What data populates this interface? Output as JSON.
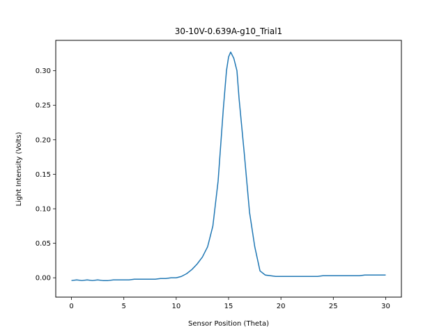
{
  "chart_data": {
    "type": "line",
    "title": "30-10V-0.639A-g10_Trial1",
    "xlabel": "Sensor Position (Theta)",
    "ylabel": "Light Intensity (Volts)",
    "xlim": [
      -1.5,
      31.5
    ],
    "ylim": [
      -0.028,
      0.344
    ],
    "xticks": [
      0,
      5,
      10,
      15,
      20,
      25,
      30
    ],
    "yticks": [
      0.0,
      0.05,
      0.1,
      0.15,
      0.2,
      0.25,
      0.3
    ],
    "ytick_labels": [
      "0.00",
      "0.05",
      "0.10",
      "0.15",
      "0.20",
      "0.25",
      "0.30"
    ],
    "grid": false,
    "line_color": "#1f77b4",
    "series": [
      {
        "x": [
          0,
          0.5,
          1,
          1.5,
          2,
          2.5,
          3,
          3.5,
          4,
          4.5,
          5,
          5.5,
          6,
          6.5,
          7,
          7.5,
          8,
          8.5,
          9,
          9.5,
          10,
          10.5,
          11,
          11.5,
          12,
          12.5,
          13,
          13.5,
          14,
          14.5,
          14.8,
          15,
          15.2,
          15.5,
          15.8,
          16,
          16.5,
          17,
          17.5,
          18,
          18.5,
          19,
          19.5,
          20,
          20.5,
          21,
          21.5,
          22,
          22.5,
          23,
          23.5,
          24,
          24.5,
          25,
          25.5,
          26,
          26.5,
          27,
          27.5,
          28,
          28.5,
          29,
          29.5,
          30
        ],
        "y": [
          -0.004,
          -0.003,
          -0.004,
          -0.003,
          -0.004,
          -0.003,
          -0.004,
          -0.004,
          -0.003,
          -0.003,
          -0.003,
          -0.003,
          -0.002,
          -0.002,
          -0.002,
          -0.002,
          -0.002,
          -0.001,
          -0.001,
          0.0,
          0.0,
          0.002,
          0.006,
          0.012,
          0.02,
          0.03,
          0.045,
          0.075,
          0.14,
          0.245,
          0.3,
          0.32,
          0.327,
          0.318,
          0.3,
          0.26,
          0.18,
          0.095,
          0.045,
          0.01,
          0.004,
          0.003,
          0.002,
          0.002,
          0.002,
          0.002,
          0.002,
          0.002,
          0.002,
          0.002,
          0.002,
          0.003,
          0.003,
          0.003,
          0.003,
          0.003,
          0.003,
          0.003,
          0.003,
          0.004,
          0.004,
          0.004,
          0.004,
          0.004
        ]
      }
    ]
  }
}
